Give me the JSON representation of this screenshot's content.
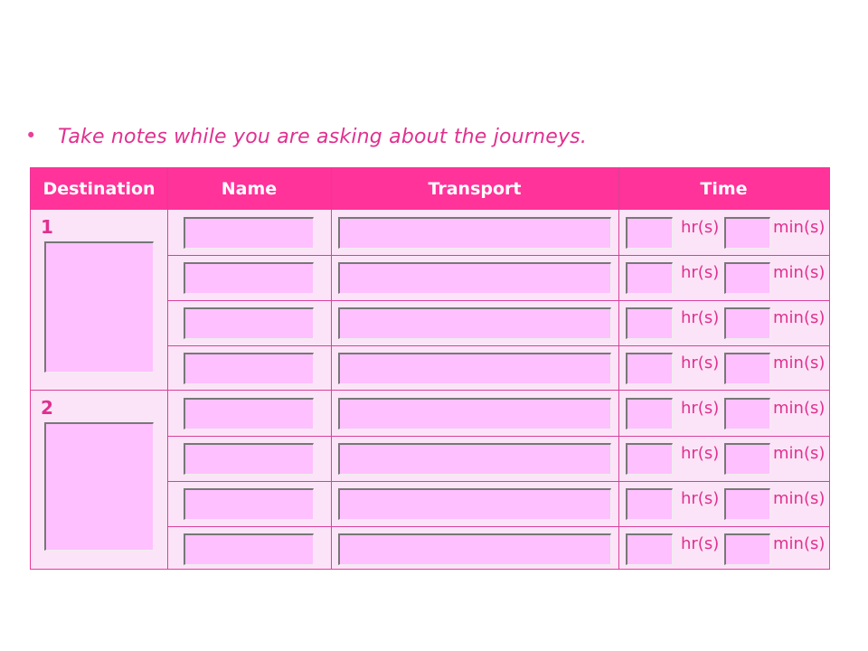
{
  "instruction": {
    "bullet": "•",
    "text": "Take notes while you are asking about the journeys."
  },
  "table": {
    "headers": [
      "Destination",
      "Name",
      "Transport",
      "Time"
    ],
    "groups": [
      {
        "label": "1"
      },
      {
        "label": "2"
      }
    ],
    "hours_label": "hr(s)",
    "minutes_label": "min(s)"
  },
  "colors": {
    "header": "#FF3399",
    "cell": "#FCE4F8",
    "input": "#FFC0FF",
    "text": "#E0308F"
  }
}
